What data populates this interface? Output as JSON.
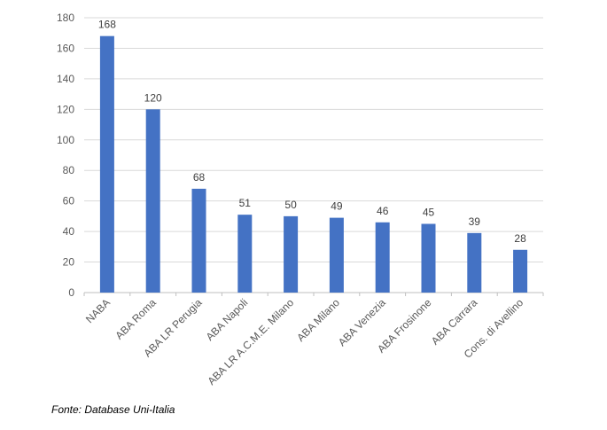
{
  "source_note": "Fonte: Database Uni-Italia",
  "colors": {
    "bar": "#4472C4",
    "grid": "#D9D9D9",
    "axis": "#BFBFBF",
    "tick_text": "#595959",
    "label_text": "#404040"
  },
  "chart_data": {
    "type": "bar",
    "title": "",
    "xlabel": "",
    "ylabel": "",
    "ylim": [
      0,
      180
    ],
    "yticks": [
      0,
      20,
      40,
      60,
      80,
      100,
      120,
      140,
      160,
      180
    ],
    "grid": true,
    "legend": "none",
    "data_labels": true,
    "categories": [
      "NABA",
      "ABA Roma",
      "ABA LR Perugia",
      "ABA Napoli",
      "ABA LR A.C.M.E. Milano",
      "ABA Milano",
      "ABA Venezia",
      "ABA Frosinone",
      "ABA Carrara",
      "Cons. di Avellino"
    ],
    "values": [
      168,
      120,
      68,
      51,
      50,
      49,
      46,
      45,
      39,
      28
    ]
  }
}
